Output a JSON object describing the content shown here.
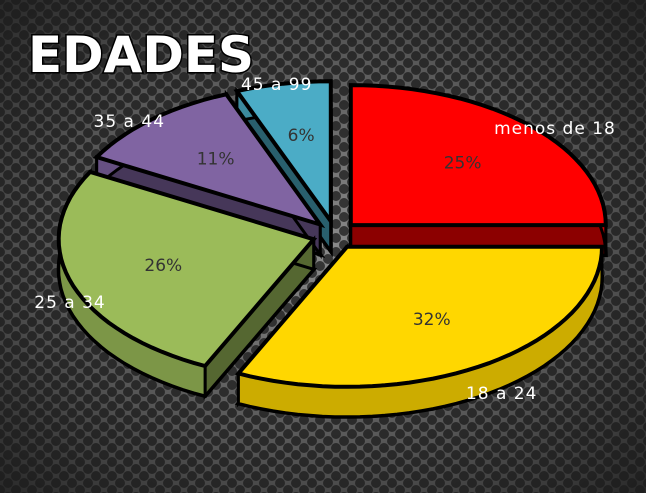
{
  "chart_data": {
    "type": "pie",
    "title": "EDADES",
    "categories": [
      "menos de 18",
      "18 a 24",
      "25 a 34",
      "35 a 44",
      "45 a 99"
    ],
    "values": [
      25,
      32,
      26,
      11,
      6
    ],
    "value_labels": [
      "25%",
      "32%",
      "26%",
      "11%",
      "6%"
    ],
    "colors": [
      "#ff0000",
      "#ffd700",
      "#9bbb59",
      "#8064a2",
      "#4bacc6"
    ]
  }
}
